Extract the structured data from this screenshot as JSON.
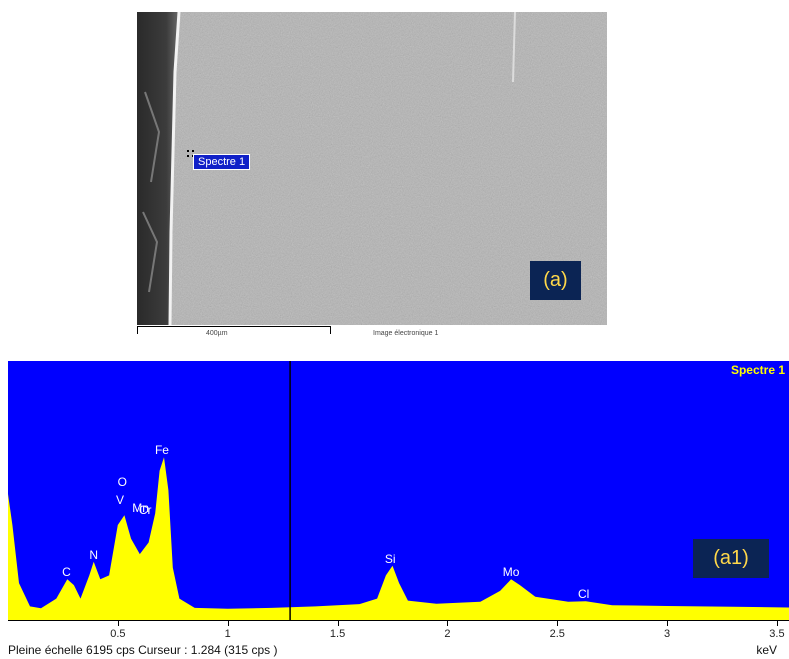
{
  "sem": {
    "spot_label": "Spectre 1",
    "panel_tag": "(a)",
    "scale_text": "400µm",
    "image_caption": "Image électronique 1"
  },
  "spectrum": {
    "title": "Spectre 1",
    "panel_tag": "(a1)",
    "status": "Pleine échelle 6195 cps  Curseur : 1.284  (315 cps )",
    "unit": "keV",
    "cursor_kev": 1.284,
    "fill_color": "#ffff00",
    "background_color": "#0000ff",
    "x_range": [
      0,
      3.55
    ],
    "full_scale_cps": 6195,
    "ticks": [
      "0.5",
      "1",
      "1.5",
      "2",
      "2.5",
      "3",
      "3.5"
    ],
    "tick_values": [
      0.5,
      1,
      1.5,
      2,
      2.5,
      3,
      3.5
    ],
    "elements": [
      {
        "symbol": "C",
        "kev": 0.28
      },
      {
        "symbol": "N",
        "kev": 0.39
      },
      {
        "symbol": "O",
        "kev": 0.52
      },
      {
        "symbol": "V",
        "kev": 0.51
      },
      {
        "symbol": "Cr",
        "kev": 0.57
      },
      {
        "symbol": "Mn",
        "kev": 0.64
      },
      {
        "symbol": "Fe",
        "kev": 0.71
      },
      {
        "symbol": "Si",
        "kev": 1.74
      },
      {
        "symbol": "Mo",
        "kev": 2.29
      },
      {
        "symbol": "Cl",
        "kev": 2.62
      }
    ],
    "profile": [
      [
        0.0,
        3200
      ],
      [
        0.02,
        2400
      ],
      [
        0.05,
        900
      ],
      [
        0.1,
        300
      ],
      [
        0.15,
        250
      ],
      [
        0.22,
        500
      ],
      [
        0.27,
        1000
      ],
      [
        0.3,
        850
      ],
      [
        0.33,
        500
      ],
      [
        0.37,
        1100
      ],
      [
        0.39,
        1450
      ],
      [
        0.42,
        1000
      ],
      [
        0.46,
        1100
      ],
      [
        0.5,
        2400
      ],
      [
        0.53,
        2650
      ],
      [
        0.56,
        2050
      ],
      [
        0.6,
        1650
      ],
      [
        0.64,
        1950
      ],
      [
        0.67,
        2700
      ],
      [
        0.69,
        3800
      ],
      [
        0.71,
        4150
      ],
      [
        0.73,
        3300
      ],
      [
        0.75,
        1300
      ],
      [
        0.78,
        500
      ],
      [
        0.85,
        260
      ],
      [
        1.0,
        240
      ],
      [
        1.2,
        260
      ],
      [
        1.4,
        300
      ],
      [
        1.6,
        360
      ],
      [
        1.68,
        500
      ],
      [
        1.72,
        1100
      ],
      [
        1.75,
        1350
      ],
      [
        1.78,
        900
      ],
      [
        1.82,
        450
      ],
      [
        1.95,
        370
      ],
      [
        2.15,
        420
      ],
      [
        2.24,
        700
      ],
      [
        2.29,
        1000
      ],
      [
        2.33,
        850
      ],
      [
        2.4,
        550
      ],
      [
        2.55,
        420
      ],
      [
        2.63,
        430
      ],
      [
        2.75,
        330
      ],
      [
        3.0,
        310
      ],
      [
        3.3,
        290
      ],
      [
        3.55,
        270
      ]
    ]
  }
}
